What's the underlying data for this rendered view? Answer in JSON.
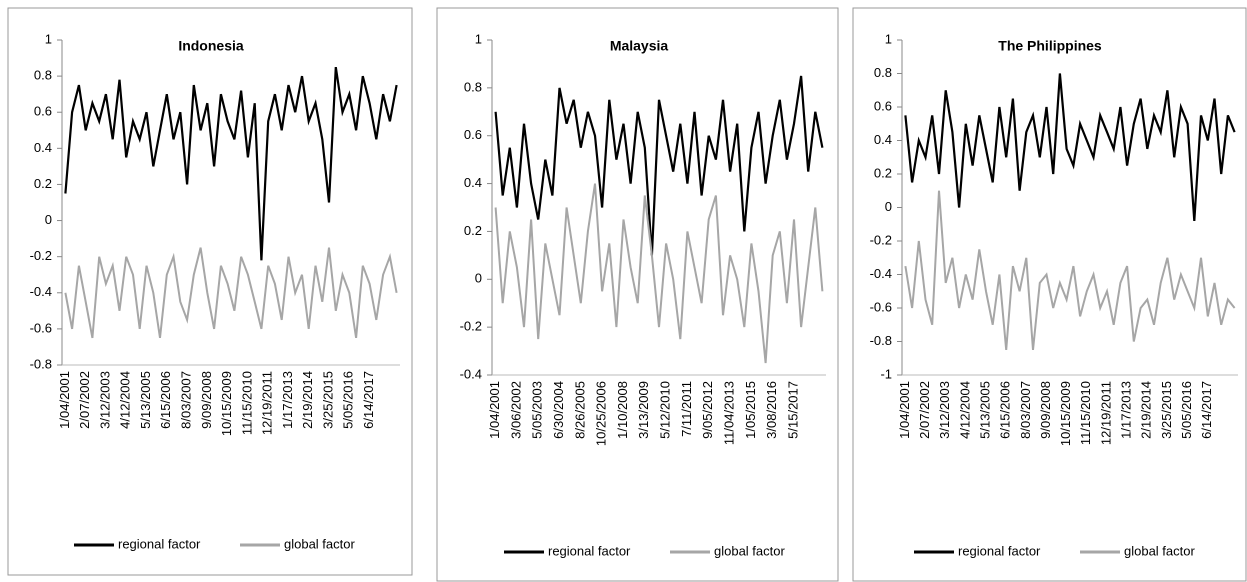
{
  "chart_data": [
    {
      "type": "line",
      "title": "Indonesia",
      "categories": [
        "1/04/2001",
        null,
        null,
        "2/07/2002",
        null,
        null,
        "3/12/2003",
        null,
        null,
        "4/12/2004",
        null,
        null,
        "5/13/2005",
        null,
        null,
        "6/15/2006",
        null,
        null,
        "8/03/2007",
        null,
        null,
        "9/09/2008",
        null,
        null,
        "10/15/2009",
        null,
        null,
        "11/15/2010",
        null,
        null,
        "12/19/2011",
        null,
        null,
        "1/17/2013",
        null,
        null,
        "2/19/2014",
        null,
        null,
        "3/25/2015",
        null,
        null,
        "5/05/2016",
        null,
        null,
        "6/14/2017",
        null,
        null,
        null,
        null
      ],
      "series": [
        {
          "name": "regional factor",
          "color": "#000000",
          "values": [
            0.15,
            0.6,
            0.75,
            0.5,
            0.65,
            0.55,
            0.7,
            0.45,
            0.78,
            0.35,
            0.55,
            0.45,
            0.6,
            0.3,
            0.5,
            0.7,
            0.45,
            0.6,
            0.2,
            0.75,
            0.5,
            0.65,
            0.3,
            0.7,
            0.55,
            0.45,
            0.72,
            0.35,
            0.65,
            -0.22,
            0.55,
            0.7,
            0.5,
            0.75,
            0.6,
            0.8,
            0.55,
            0.65,
            0.45,
            0.1,
            0.85,
            0.6,
            0.7,
            0.5,
            0.8,
            0.65,
            0.45,
            0.7,
            0.55,
            0.75
          ]
        },
        {
          "name": "global factor",
          "color": "#a6a6a6",
          "values": [
            -0.4,
            -0.6,
            -0.25,
            -0.45,
            -0.65,
            -0.2,
            -0.35,
            -0.25,
            -0.5,
            -0.2,
            -0.3,
            -0.6,
            -0.25,
            -0.4,
            -0.65,
            -0.3,
            -0.2,
            -0.45,
            -0.55,
            -0.3,
            -0.15,
            -0.4,
            -0.6,
            -0.25,
            -0.35,
            -0.5,
            -0.2,
            -0.3,
            -0.45,
            -0.6,
            -0.25,
            -0.35,
            -0.55,
            -0.2,
            -0.4,
            -0.3,
            -0.6,
            -0.25,
            -0.45,
            -0.15,
            -0.5,
            -0.3,
            -0.4,
            -0.65,
            -0.25,
            -0.35,
            -0.55,
            -0.3,
            -0.2,
            -0.4
          ]
        }
      ],
      "ylim": [
        -0.8,
        1
      ],
      "yticks": [
        -0.8,
        -0.6,
        -0.4,
        -0.2,
        0,
        0.2,
        0.4,
        0.6,
        0.8,
        1
      ],
      "grid": false
    },
    {
      "type": "line",
      "title": "Malaysia",
      "categories": [
        "1/04/2001",
        null,
        null,
        "3/06/2002",
        null,
        null,
        "5/05/2003",
        null,
        null,
        "6/30/2004",
        null,
        null,
        "8/26/2005",
        null,
        null,
        "10/25/2006",
        null,
        null,
        "1/10/2008",
        null,
        null,
        "3/13/2009",
        null,
        null,
        "5/12/2010",
        null,
        null,
        "7/11/2011",
        null,
        null,
        "9/05/2012",
        null,
        null,
        "11/04/2013",
        null,
        null,
        "1/05/2015",
        null,
        null,
        "3/08/2016",
        null,
        null,
        "5/15/2017",
        null,
        null,
        null,
        null
      ],
      "series": [
        {
          "name": "regional factor",
          "color": "#000000",
          "values": [
            0.7,
            0.35,
            0.55,
            0.3,
            0.65,
            0.4,
            0.25,
            0.5,
            0.35,
            0.8,
            0.65,
            0.75,
            0.55,
            0.7,
            0.6,
            0.3,
            0.75,
            0.5,
            0.65,
            0.4,
            0.7,
            0.55,
            0.1,
            0.75,
            0.6,
            0.45,
            0.65,
            0.4,
            0.7,
            0.35,
            0.6,
            0.5,
            0.75,
            0.45,
            0.65,
            0.2,
            0.55,
            0.7,
            0.4,
            0.6,
            0.75,
            0.5,
            0.65,
            0.85,
            0.45,
            0.7,
            0.55
          ]
        },
        {
          "name": "global factor",
          "color": "#a6a6a6",
          "values": [
            0.3,
            -0.1,
            0.2,
            0.05,
            -0.2,
            0.25,
            -0.25,
            0.15,
            0.0,
            -0.15,
            0.3,
            0.1,
            -0.1,
            0.2,
            0.4,
            -0.05,
            0.15,
            -0.2,
            0.25,
            0.05,
            -0.1,
            0.35,
            0.1,
            -0.2,
            0.15,
            0.0,
            -0.25,
            0.2,
            0.05,
            -0.1,
            0.25,
            0.35,
            -0.15,
            0.1,
            0.0,
            -0.2,
            0.15,
            -0.05,
            -0.35,
            0.1,
            0.2,
            -0.1,
            0.25,
            -0.2,
            0.05,
            0.3,
            -0.05
          ]
        }
      ],
      "ylim": [
        -0.4,
        1
      ],
      "yticks": [
        -0.4,
        -0.2,
        0,
        0.2,
        0.4,
        0.6,
        0.8,
        1
      ],
      "grid": false
    },
    {
      "type": "line",
      "title": "The Philippines",
      "categories": [
        "1/04/2001",
        null,
        null,
        "2/07/2002",
        null,
        null,
        "3/12/2003",
        null,
        null,
        "4/12/2004",
        null,
        null,
        "5/13/2005",
        null,
        null,
        "6/15/2006",
        null,
        null,
        "8/03/2007",
        null,
        null,
        "9/09/2008",
        null,
        null,
        "10/15/2009",
        null,
        null,
        "11/15/2010",
        null,
        null,
        "12/19/2011",
        null,
        null,
        "1/17/2013",
        null,
        null,
        "2/19/2014",
        null,
        null,
        "3/25/2015",
        null,
        null,
        "5/05/2016",
        null,
        null,
        "6/14/2017",
        null,
        null,
        null,
        null
      ],
      "series": [
        {
          "name": "regional factor",
          "color": "#000000",
          "values": [
            0.55,
            0.15,
            0.4,
            0.3,
            0.55,
            0.2,
            0.7,
            0.45,
            0.0,
            0.5,
            0.25,
            0.55,
            0.35,
            0.15,
            0.6,
            0.3,
            0.65,
            0.1,
            0.45,
            0.55,
            0.3,
            0.6,
            0.2,
            0.8,
            0.35,
            0.25,
            0.5,
            0.4,
            0.3,
            0.55,
            0.45,
            0.35,
            0.6,
            0.25,
            0.5,
            0.65,
            0.35,
            0.55,
            0.45,
            0.7,
            0.3,
            0.6,
            0.5,
            -0.08,
            0.55,
            0.4,
            0.65,
            0.2,
            0.55,
            0.45
          ]
        },
        {
          "name": "global factor",
          "color": "#a6a6a6",
          "values": [
            -0.35,
            -0.6,
            -0.2,
            -0.55,
            -0.7,
            0.1,
            -0.45,
            -0.3,
            -0.6,
            -0.4,
            -0.55,
            -0.25,
            -0.5,
            -0.7,
            -0.4,
            -0.85,
            -0.35,
            -0.5,
            -0.3,
            -0.85,
            -0.45,
            -0.4,
            -0.6,
            -0.45,
            -0.55,
            -0.35,
            -0.65,
            -0.5,
            -0.4,
            -0.6,
            -0.5,
            -0.7,
            -0.45,
            -0.35,
            -0.8,
            -0.6,
            -0.55,
            -0.7,
            -0.45,
            -0.3,
            -0.55,
            -0.4,
            -0.5,
            -0.6,
            -0.3,
            -0.65,
            -0.45,
            -0.7,
            -0.55,
            -0.6
          ]
        }
      ],
      "ylim": [
        -1,
        1
      ],
      "yticks": [
        -1,
        -0.8,
        -0.6,
        -0.4,
        -0.2,
        0,
        0.2,
        0.4,
        0.6,
        0.8,
        1
      ],
      "grid": false
    }
  ]
}
